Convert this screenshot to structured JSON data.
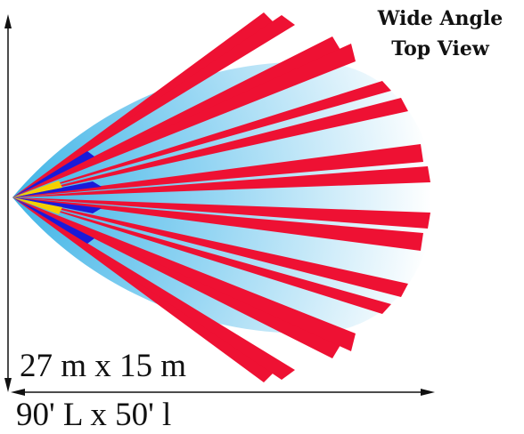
{
  "title": {
    "line1": "Wide Angle",
    "line2": "Top View"
  },
  "dimensions": {
    "metric": "27 m x 15 m",
    "imperial": "90' L x 50' l"
  },
  "colors": {
    "beam": "#ee1133",
    "beam_short": "#1a1ad9",
    "beam_near": "#f5d000",
    "coverage_near": "#5fc3ea",
    "coverage_far": "#ffffff",
    "axis": "#111111"
  },
  "icons": {
    "vertical_axis": "vertical-double-arrow",
    "horizontal_axis": "horizontal-double-arrow"
  }
}
